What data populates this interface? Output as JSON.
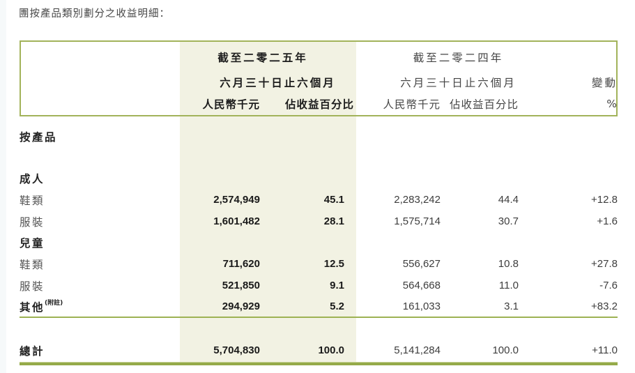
{
  "title": "團按產品類別劃分之收益明細：",
  "colors": {
    "accent": "#a2b35a",
    "band": "#f2f2e3",
    "ruleDark": "#95aa49",
    "ruleLight": "#ccd7a1"
  },
  "table": {
    "header": {
      "y2025": {
        "period": "截至二零二五年",
        "duration": "六月三十日止六個月",
        "unit": "人民幣千元",
        "share": "佔收益百分比"
      },
      "y2024": {
        "period": "截至二零二四年",
        "duration": "六月三十日止六個月",
        "unit": "人民幣千元",
        "share": "佔收益百分比"
      },
      "change": {
        "label": "變動",
        "unit": "%"
      }
    },
    "section_label": "按產品",
    "rows": [
      {
        "label": "成人"
      },
      {
        "label": "鞋類",
        "v25": "2,574,949",
        "p25": "45.1",
        "v24": "2,283,242",
        "p24": "44.4",
        "chg": "+12.8"
      },
      {
        "label": "服裝",
        "v25": "1,601,482",
        "p25": "28.1",
        "v24": "1,575,714",
        "p24": "30.7",
        "chg": "+1.6"
      },
      {
        "label": "兒童"
      },
      {
        "label": "鞋類",
        "v25": "711,620",
        "p25": "12.5",
        "v24": "556,627",
        "p24": "10.8",
        "chg": "+27.8"
      },
      {
        "label": "服裝",
        "v25": "521,850",
        "p25": "9.1",
        "v24": "564,668",
        "p24": "11.0",
        "chg": "-7.6"
      },
      {
        "label": "其他",
        "note": "(附註)",
        "v25": "294,929",
        "p25": "5.2",
        "v24": "161,033",
        "p24": "3.1",
        "chg": "+83.2"
      }
    ],
    "total": {
      "label": "總計",
      "v25": "5,704,830",
      "p25": "100.0",
      "v24": "5,141,284",
      "p24": "100.0",
      "chg": "+11.0"
    }
  }
}
